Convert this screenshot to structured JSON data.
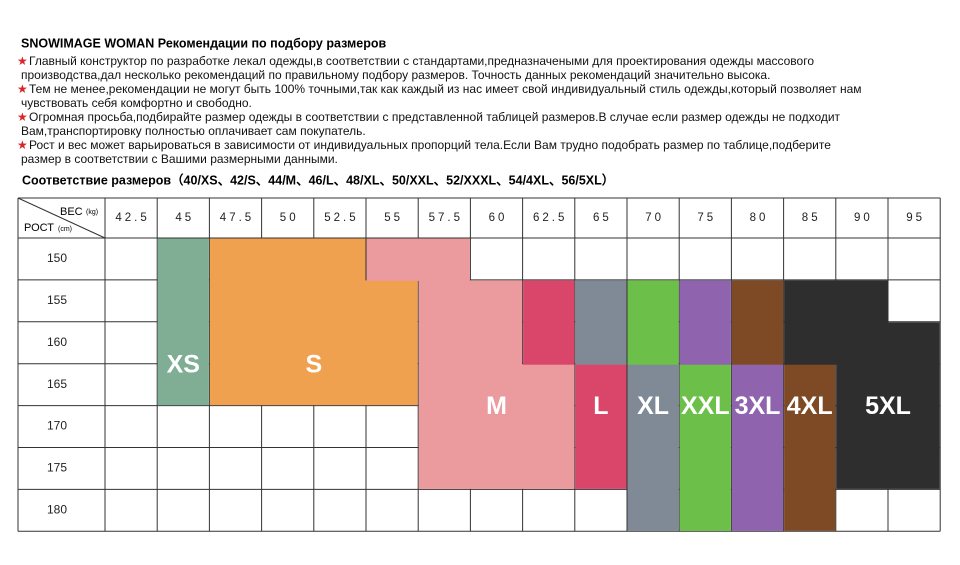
{
  "header": {
    "title": "SNOWIMAGE WOMAN Рекомендации по подбору размеров",
    "notes": [
      [
        "Главный конструктор по разработке лекал одежды,в соответствии с стандартами,предназначеными для проектирования одежды массового",
        "производства,дал несколько рекомендаций по правильному подбору размеров. Точность данных рекомендаций значительно высока."
      ],
      [
        "Тем не менее,рекомендации не могут быть 100% точными,так как каждый из нас имеет свой индивидуальный стиль одежды,который позволяет нам",
        "чувствовать себя комфортно и свободно."
      ],
      [
        "Огромная просьба,подбирайте размер одежды в соответствии с представленной таблицей размеров.В случае если размер одежды не подходит",
        "Вам,транспортировку полностью оплачивает сам покупатель."
      ],
      [
        "Рост и вес может варьироваться в зависимости от индивидуальных пропорций тела.Если Вам трудно подобрать размер по таблице,подберите",
        "размер в соответствии с Вашими размерными данными."
      ]
    ],
    "subtitle": "Соответствие размеров（40/XS、42/S、44/M、46/L、48/XL、50/XXL、52/XXXL、54/4XL、56/5XL）"
  },
  "table": {
    "weight_label": "ВЕС",
    "weight_unit": "(kg)",
    "height_label": "РОСТ",
    "height_unit": "(cm)",
    "weights": [
      "42.5",
      "45",
      "47.5",
      "50",
      "52.5",
      "55",
      "57.5",
      "60",
      "62.5",
      "65",
      "70",
      "75",
      "80",
      "85",
      "90",
      "95"
    ],
    "heights": [
      "150",
      "155",
      "160",
      "165",
      "170",
      "175",
      "180"
    ],
    "sizes": [
      {
        "label": "XS",
        "color": "#7fae95",
        "cells": [
          [
            0,
            1,
            1
          ],
          [
            1,
            1,
            1
          ],
          [
            2,
            1,
            1
          ],
          [
            3,
            1,
            1
          ]
        ]
      },
      {
        "label": "S",
        "color": "#f0a14f",
        "cells": [
          [
            0,
            2,
            4
          ],
          [
            1,
            2,
            5
          ],
          [
            2,
            2,
            5
          ],
          [
            3,
            2,
            5
          ]
        ]
      },
      {
        "label": "M",
        "color": "#eb9a9e",
        "cells": [
          [
            0,
            5,
            6
          ],
          [
            1,
            6,
            7
          ],
          [
            2,
            6,
            7
          ],
          [
            3,
            6,
            8
          ],
          [
            4,
            6,
            8
          ],
          [
            5,
            6,
            8
          ]
        ]
      },
      {
        "label": "L",
        "color": "#d9466a",
        "cells": [
          [
            1,
            8,
            8
          ],
          [
            2,
            8,
            8
          ],
          [
            3,
            9,
            9
          ],
          [
            4,
            9,
            9
          ],
          [
            5,
            9,
            9
          ]
        ]
      },
      {
        "label": "XL",
        "color": "#7f8a96",
        "cells": [
          [
            1,
            9,
            9
          ],
          [
            2,
            9,
            9
          ],
          [
            3,
            10,
            10
          ],
          [
            4,
            10,
            10
          ],
          [
            5,
            10,
            10
          ],
          [
            6,
            10,
            10
          ]
        ]
      },
      {
        "label": "XXL",
        "color": "#6cc04a",
        "cells": [
          [
            1,
            10,
            10
          ],
          [
            2,
            10,
            10
          ],
          [
            3,
            11,
            11
          ],
          [
            4,
            11,
            11
          ],
          [
            5,
            11,
            11
          ],
          [
            6,
            11,
            11
          ]
        ]
      },
      {
        "label": "3XL",
        "color": "#8f63ad",
        "cells": [
          [
            1,
            11,
            11
          ],
          [
            2,
            11,
            11
          ],
          [
            3,
            12,
            12
          ],
          [
            4,
            12,
            12
          ],
          [
            5,
            12,
            12
          ],
          [
            6,
            12,
            12
          ]
        ]
      },
      {
        "label": "4XL",
        "color": "#7e4a25",
        "cells": [
          [
            1,
            12,
            12
          ],
          [
            2,
            12,
            12
          ],
          [
            3,
            13,
            13
          ],
          [
            4,
            13,
            13
          ],
          [
            5,
            13,
            13
          ],
          [
            6,
            13,
            13
          ]
        ]
      },
      {
        "label": "5XL",
        "color": "#2e2e2e",
        "cells": [
          [
            1,
            13,
            14
          ],
          [
            2,
            13,
            15
          ],
          [
            3,
            14,
            15
          ],
          [
            4,
            14,
            15
          ],
          [
            5,
            14,
            15
          ]
        ]
      }
    ]
  }
}
